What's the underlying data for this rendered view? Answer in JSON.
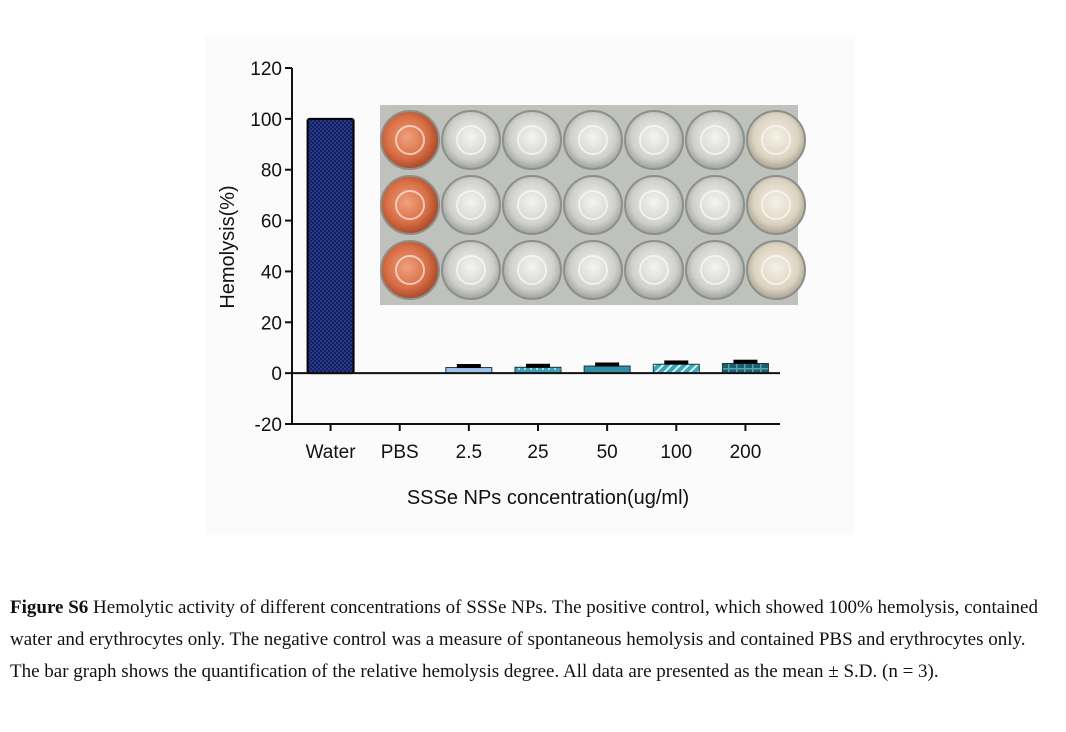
{
  "chart_data": {
    "type": "bar",
    "title": "",
    "xlabel": "SSSe NPs concentration(ug/ml)",
    "ylabel": "Hemolysis(%)",
    "ylim": [
      -20,
      120
    ],
    "yticks": [
      -20,
      0,
      20,
      40,
      60,
      80,
      100,
      120
    ],
    "categories": [
      "Water",
      "PBS",
      "2.5",
      "25",
      "50",
      "100",
      "200"
    ],
    "values": [
      100,
      0,
      2.2,
      2.3,
      2.8,
      3.5,
      3.8
    ],
    "errors": [
      0,
      0,
      0.6,
      0.6,
      0.6,
      0.7,
      0.7
    ],
    "bar_colors": [
      "#12205e",
      "#ffffff",
      "#9ec3ef",
      "#3d9fb8",
      "#2e8fa5",
      "#3aa7b8",
      "#1b5f6e"
    ],
    "legend": "none",
    "grid": false,
    "inset": "photo of 96-well plate with three rows of seven wells; first column red (water control), remaining wells nearly clear"
  },
  "caption": {
    "label": "Figure S6",
    "text": " Hemolytic activity of different concentrations of SSSe NPs. The positive control, which showed 100% hemolysis, contained water and erythrocytes only. The negative control was a measure of spontaneous hemolysis and contained PBS and erythrocytes only. The bar graph shows the quantification of the relative hemolysis degree. All data are presented as the mean ± S.D. (n = 3)."
  }
}
